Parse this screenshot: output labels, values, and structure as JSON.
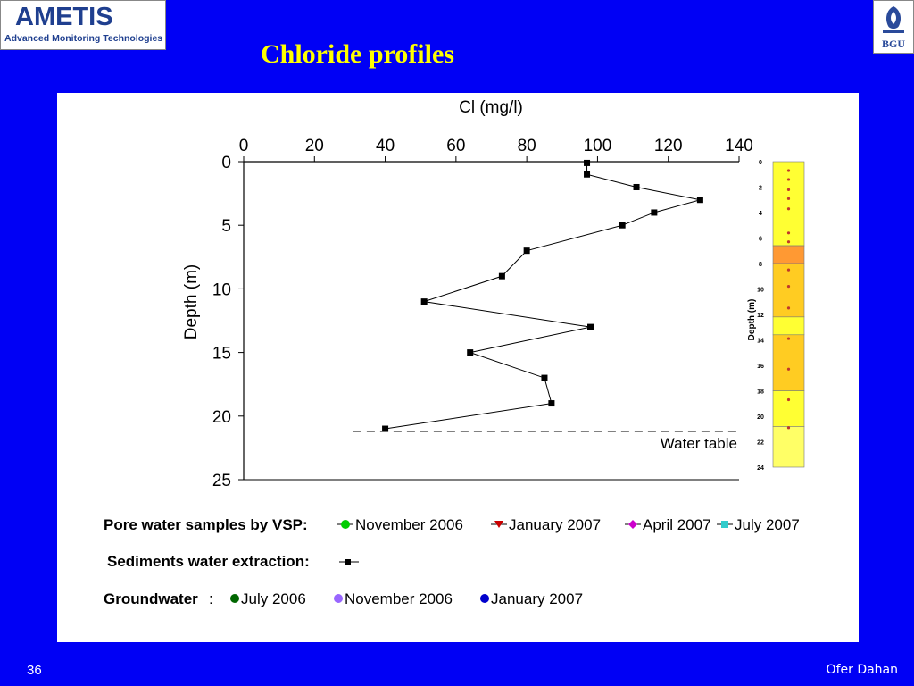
{
  "header": {
    "logo_left_line1": "AMETIS",
    "logo_left_line2": "Advanced Monitoring Technologies",
    "logo_right": "BGU",
    "title": "Chloride profiles"
  },
  "footer": {
    "slide_number": "36",
    "author": "Ofer Dahan"
  },
  "chart_data": {
    "type": "line",
    "xlabel": "Cl (mg/l)",
    "ylabel": "Depth (m)",
    "xlim": [
      0,
      140
    ],
    "ylim": [
      0,
      25
    ],
    "x_ticks": [
      0,
      20,
      40,
      60,
      80,
      100,
      120,
      140
    ],
    "y_ticks": [
      0,
      5,
      10,
      15,
      20,
      25
    ],
    "x_axis_position": "top",
    "y_inverted": true,
    "grid": false,
    "series": [
      {
        "name": "Sediments water extraction:",
        "color": "#000000",
        "marker": "square",
        "points": [
          {
            "x": 97,
            "y": 0.1
          },
          {
            "x": 97,
            "y": 1.0
          },
          {
            "x": 111,
            "y": 2.0
          },
          {
            "x": 129,
            "y": 3.0
          },
          {
            "x": 116,
            "y": 4.0
          },
          {
            "x": 107,
            "y": 5.0
          },
          {
            "x": 80,
            "y": 7.0
          },
          {
            "x": 73,
            "y": 9.0
          },
          {
            "x": 51,
            "y": 11.0
          },
          {
            "x": 98,
            "y": 13.0
          },
          {
            "x": 64,
            "y": 15.0
          },
          {
            "x": 85,
            "y": 17.0
          },
          {
            "x": 87,
            "y": 19.0
          },
          {
            "x": 40,
            "y": 21.0
          }
        ]
      }
    ],
    "annotations": [
      {
        "type": "hline",
        "y": 21.2,
        "x_from": 31,
        "x_to": 140,
        "style": "dashed",
        "label": "Water table"
      }
    ],
    "lithology_column": {
      "ylabel": "Depth (m)",
      "ticks": [
        0,
        2,
        4,
        6,
        8,
        10,
        12,
        14,
        16,
        18,
        20,
        22,
        24
      ],
      "layers": [
        {
          "from": 0,
          "to": 6.6,
          "color": "#ffff33"
        },
        {
          "from": 6.6,
          "to": 8.0,
          "color": "#ff9933"
        },
        {
          "from": 8.0,
          "to": 12.2,
          "color": "#ffcc22"
        },
        {
          "from": 12.2,
          "to": 13.6,
          "color": "#ffff33"
        },
        {
          "from": 13.6,
          "to": 18.0,
          "color": "#ffcc22"
        },
        {
          "from": 18.0,
          "to": 20.8,
          "color": "#ffff33"
        },
        {
          "from": 20.8,
          "to": 24.0,
          "color": "#ffff66"
        }
      ],
      "sample_depths": [
        0.7,
        1.4,
        2.2,
        2.9,
        3.7,
        5.6,
        6.3,
        8.5,
        9.8,
        11.5,
        13.9,
        16.3,
        18.7,
        20.9
      ]
    },
    "legend": {
      "row1_label": "Pore water samples by VSP:",
      "row1_items": [
        {
          "name": "November 2006",
          "color": "#00cc00",
          "marker": "circle"
        },
        {
          "name": "January 2007",
          "color": "#cc0000",
          "marker": "triangle-down"
        },
        {
          "name": "April 2007",
          "color": "#cc00cc",
          "marker": "diamond"
        },
        {
          "name": "July 2007",
          "color": "#33cccc",
          "marker": "square"
        }
      ],
      "row2_label": "Sediments water extraction:",
      "row3_label": "Groundwater",
      "row3_items": [
        {
          "name": "July 2006",
          "color": "#006600",
          "marker": "circle"
        },
        {
          "name": "November 2006",
          "color": "#9966ff",
          "marker": "circle"
        },
        {
          "name": "January 2007",
          "color": "#0000cc",
          "marker": "circle"
        }
      ]
    }
  }
}
